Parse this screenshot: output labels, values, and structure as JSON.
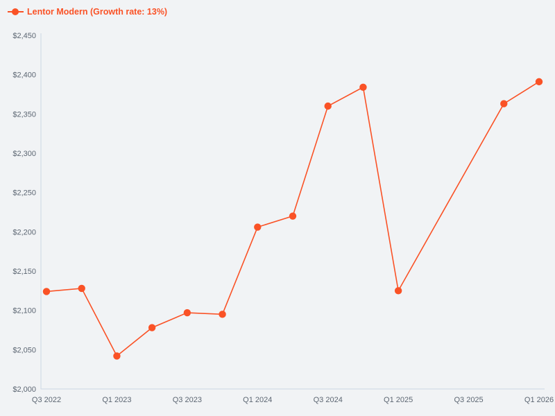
{
  "legend": {
    "label": "Lentor Modern (Growth rate: 13%)"
  },
  "colors": {
    "series": "#fa5226",
    "background": "#f1f3f5",
    "axis": "#ccd7e4",
    "tick_text": "#5c6672"
  },
  "chart_data": {
    "type": "line",
    "title": "Lentor Modern (Growth rate: 13%)",
    "series_name": "Lentor Modern",
    "growth_rate_label": "Growth rate: 13%",
    "categories": [
      "Q3 2022",
      "Q4 2022",
      "Q1 2023",
      "Q2 2023",
      "Q3 2023",
      "Q4 2023",
      "Q1 2024",
      "Q2 2024",
      "Q3 2024",
      "Q4 2024",
      "Q1 2025",
      "Q2 2025",
      "Q3 2025",
      "Q4 2025",
      "Q1 2026"
    ],
    "values": [
      2124,
      2128,
      2042,
      2078,
      2097,
      2095,
      2206,
      2220,
      2360,
      2384,
      2125,
      null,
      null,
      2363,
      2391
    ],
    "x_tick_labels": [
      "Q3 2022",
      "Q1 2023",
      "Q3 2023",
      "Q1 2024",
      "Q3 2024",
      "Q1 2025",
      "Q3 2025",
      "Q1 2026"
    ],
    "y_ticks": [
      2000,
      2050,
      2100,
      2150,
      2200,
      2250,
      2300,
      2350,
      2400,
      2450
    ],
    "y_tick_prefix": "$",
    "ylim": [
      2000,
      2450
    ],
    "grid": false,
    "legend_position": "top-left",
    "marker": "circle",
    "connect_nulls": true
  }
}
